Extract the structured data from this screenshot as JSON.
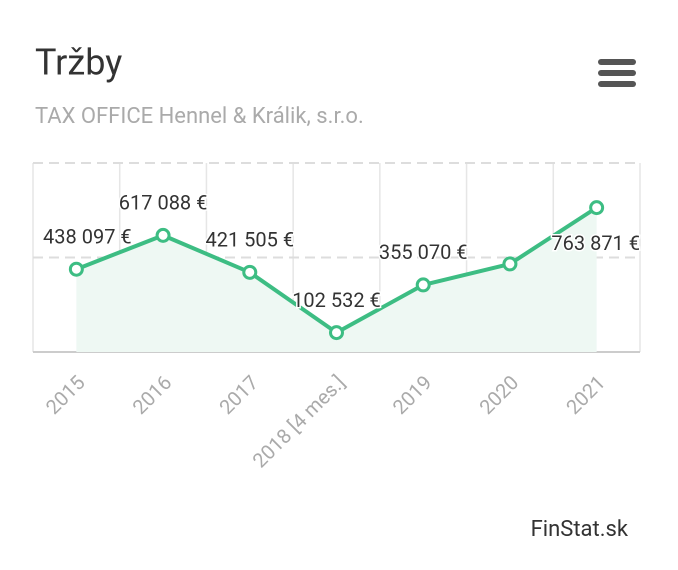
{
  "chart_data": {
    "type": "line",
    "title": "Tržby",
    "subtitle": "TAX OFFICE Hennel & Králik, s.r.o.",
    "credit": "FinStat.sk",
    "categories": [
      "2015",
      "2016",
      "2017",
      "2018 [4 mes.]",
      "2019",
      "2020",
      "2021"
    ],
    "values": [
      438097,
      617088,
      421505,
      102532,
      355070,
      466000,
      763871
    ],
    "value_labels": [
      "438 097 €",
      "617 088 €",
      "421 505 €",
      "102 532 €",
      "355 070 €",
      null,
      "763 871 €"
    ],
    "color": "#3dbd83",
    "area_color": "#eef8f3",
    "ylim": [
      0,
      1000000
    ],
    "yticks": [
      0,
      500000,
      1000000
    ],
    "grid": true
  }
}
